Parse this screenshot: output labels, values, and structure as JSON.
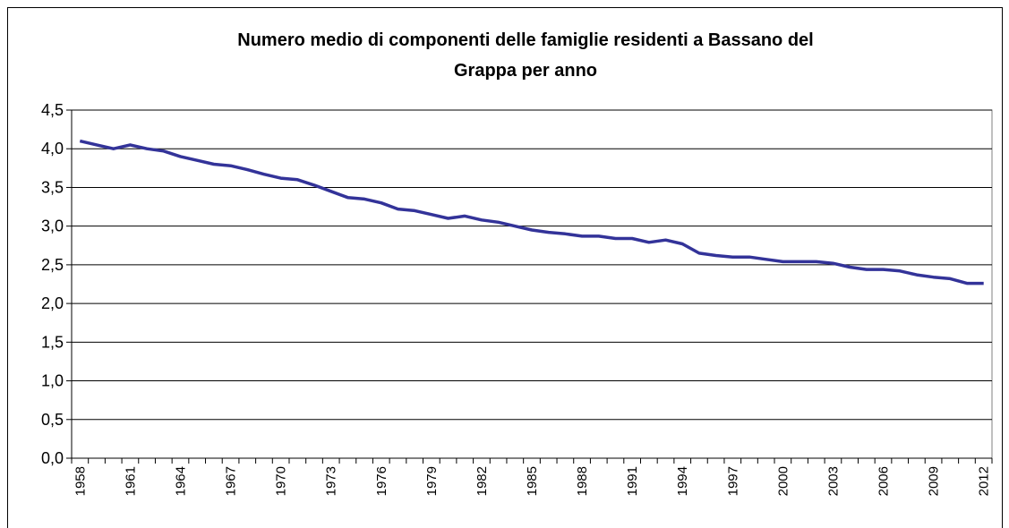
{
  "chart_data": {
    "type": "line",
    "title": [
      "Numero medio di componenti delle famiglie residenti a Bassano del",
      "Grappa per anno"
    ],
    "categories": [
      "1958",
      null,
      null,
      "1961",
      null,
      null,
      "1964",
      null,
      null,
      "1967",
      null,
      null,
      "1970",
      null,
      null,
      "1973",
      null,
      null,
      "1976",
      null,
      null,
      "1979",
      null,
      null,
      "1982",
      null,
      null,
      "1985",
      null,
      null,
      "1988",
      null,
      null,
      "1991",
      null,
      null,
      "1994",
      null,
      null,
      "1997",
      null,
      null,
      "2000",
      null,
      null,
      "2003",
      null,
      null,
      "2006",
      null,
      null,
      "2009",
      null,
      null,
      "2012"
    ],
    "series": [
      {
        "color": "#333399",
        "values": [
          4.1,
          4.05,
          4.0,
          4.05,
          4.0,
          3.97,
          3.9,
          3.85,
          3.8,
          3.78,
          3.73,
          3.67,
          3.62,
          3.6,
          3.53,
          3.45,
          3.37,
          3.35,
          3.3,
          3.22,
          3.2,
          3.15,
          3.1,
          3.13,
          3.08,
          3.05,
          3.0,
          2.95,
          2.92,
          2.9,
          2.87,
          2.87,
          2.84,
          2.84,
          2.79,
          2.82,
          2.77,
          2.65,
          2.62,
          2.6,
          2.6,
          2.57,
          2.54,
          2.54,
          2.54,
          2.52,
          2.47,
          2.44,
          2.44,
          2.42,
          2.37,
          2.34,
          2.32,
          2.26,
          2.26
        ]
      }
    ],
    "ylim": [
      0,
      4.5
    ],
    "yticks": [
      {
        "value": 0,
        "label": "0,0"
      },
      {
        "value": 0.5,
        "label": "0,5"
      },
      {
        "value": 1,
        "label": "1,0"
      },
      {
        "value": 1.5,
        "label": "1,5"
      },
      {
        "value": 2,
        "label": "2,0"
      },
      {
        "value": 2.5,
        "label": "2,5"
      },
      {
        "value": 3,
        "label": "3,0"
      },
      {
        "value": 3.5,
        "label": "3,5"
      },
      {
        "value": 4,
        "label": "4,0"
      },
      {
        "value": 4.5,
        "label": "4,5"
      }
    ],
    "grid": true
  }
}
